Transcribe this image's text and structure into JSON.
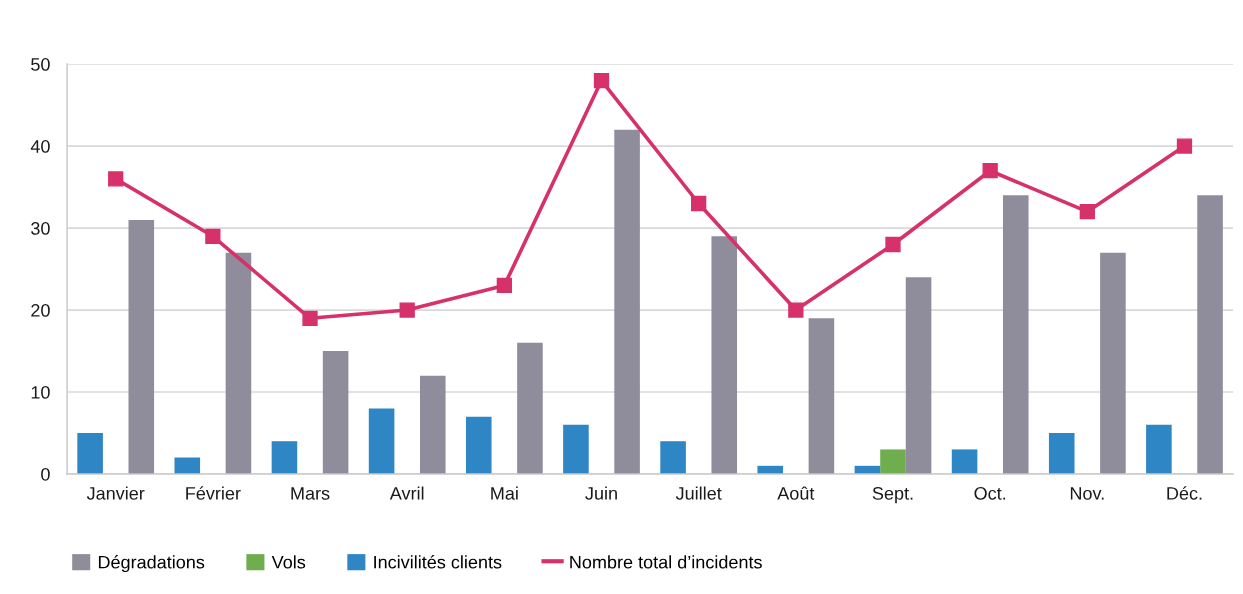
{
  "chart_data": {
    "type": "bar",
    "categories": [
      "Janvier",
      "Février",
      "Mars",
      "Avril",
      "Mai",
      "Juin",
      "Juillet",
      "Août",
      "Sept.",
      "Oct.",
      "Nov.",
      "Déc."
    ],
    "series": [
      {
        "name": "Dégradations",
        "color": "#8f8d9b",
        "values": [
          31,
          27,
          15,
          12,
          16,
          42,
          29,
          19,
          24,
          34,
          27,
          34
        ]
      },
      {
        "name": "Vols",
        "color": "#6fad4f",
        "values": [
          0,
          0,
          0,
          0,
          0,
          0,
          0,
          0,
          3,
          0,
          0,
          0
        ]
      },
      {
        "name": "Incivilités clients",
        "color": "#2f86c4",
        "values": [
          5,
          2,
          4,
          8,
          7,
          6,
          4,
          1,
          1,
          3,
          5,
          6
        ]
      },
      {
        "name": "Nombre total d’incidents",
        "type": "line",
        "color": "#d6316b",
        "values": [
          36,
          29,
          19,
          20,
          23,
          48,
          33,
          20,
          28,
          37,
          32,
          40
        ]
      }
    ],
    "ylim": [
      0,
      50
    ],
    "yticks": [
      0,
      10,
      20,
      30,
      40,
      50
    ],
    "grid": "y",
    "legend": "bottom",
    "marker": "square",
    "line_style": "solid"
  }
}
